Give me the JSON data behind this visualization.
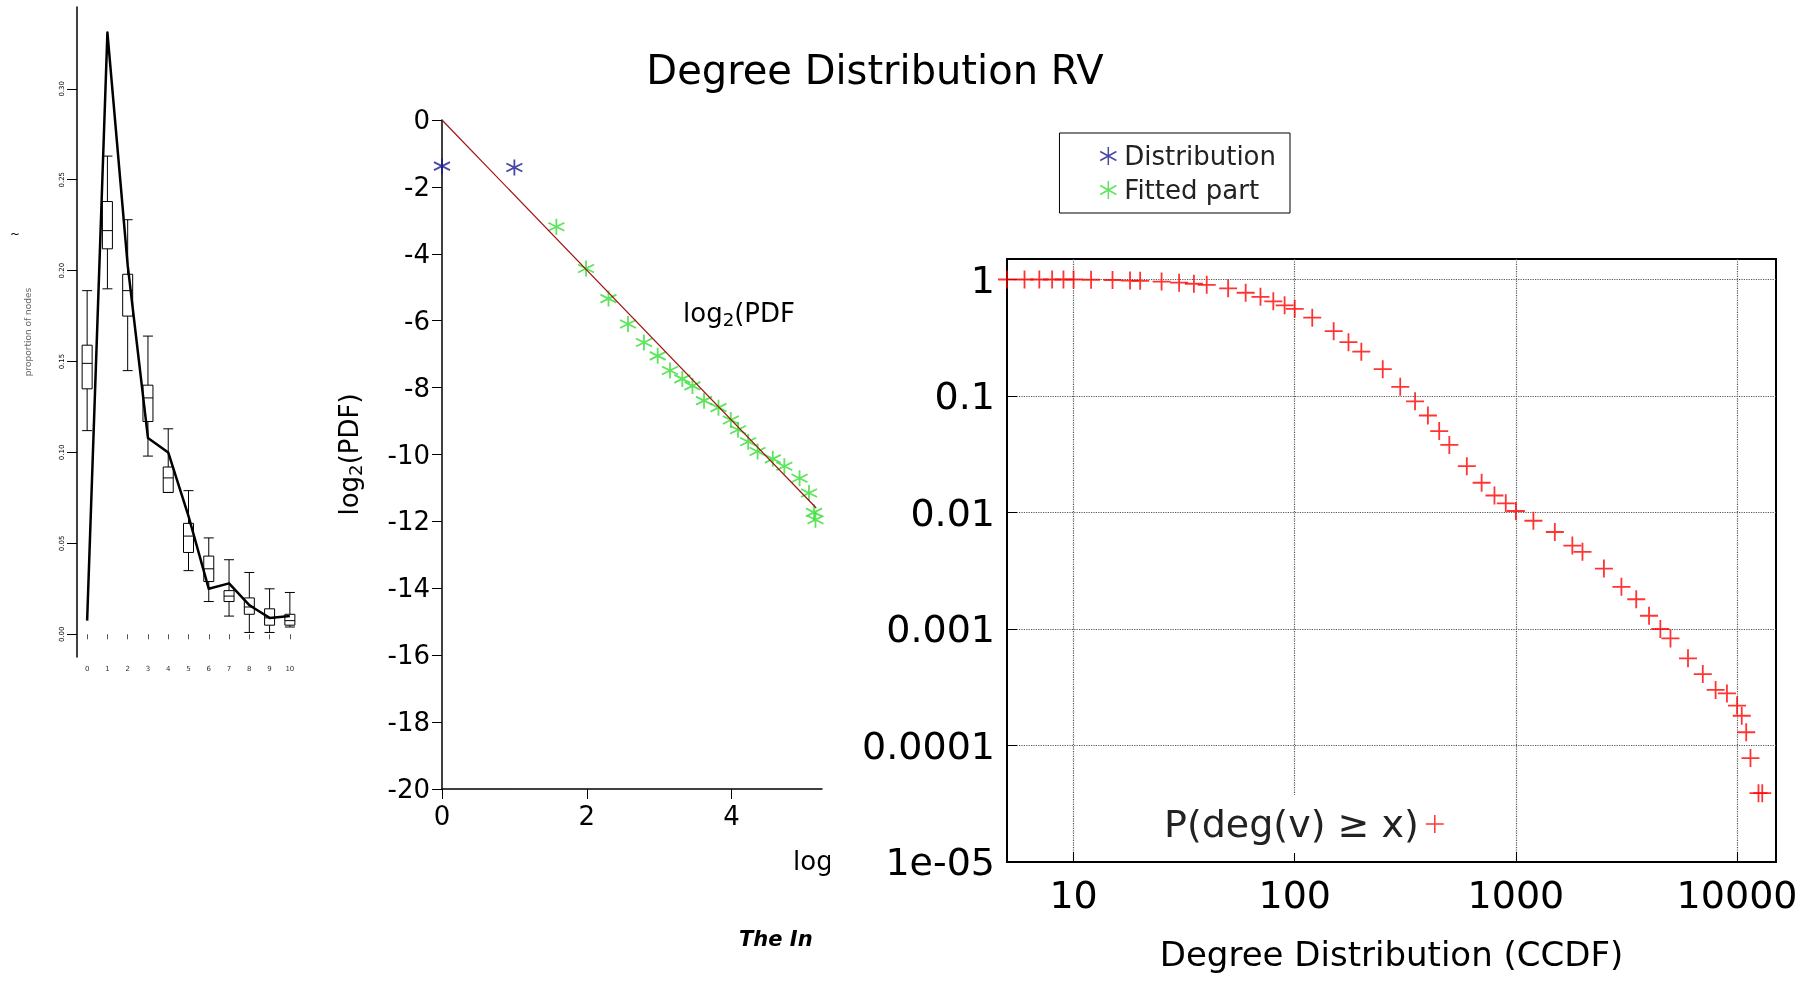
{
  "chart_data": [
    {
      "type": "box",
      "ylabel": "proportion of nodes",
      "categories": [
        "0",
        "1",
        "2",
        "3",
        "4",
        "5",
        "6",
        "7",
        "8",
        "9",
        "10"
      ],
      "ylim": [
        -0.0125,
        0.345
      ],
      "yticks": [
        {
          "value": 0,
          "label": "0.00"
        },
        {
          "value": 0.05,
          "label": "0.05"
        },
        {
          "value": 0.1,
          "label": "0.10"
        },
        {
          "value": 0.15,
          "label": "0.15"
        },
        {
          "value": 0.2,
          "label": "0.20"
        },
        {
          "value": 0.25,
          "label": "0.25"
        },
        {
          "value": 0.3,
          "label": "0.30"
        }
      ],
      "series": [
        {
          "color": "#000000",
          "boxes": [
            {
              "low": 0.112,
              "q1": 0.135,
              "median": 0.149,
              "q3": 0.159,
              "high": 0.189
            },
            {
              "low": 0.19,
              "q1": 0.212,
              "median": 0.222,
              "q3": 0.238,
              "high": 0.263
            },
            {
              "low": 0.145,
              "q1": 0.175,
              "median": 0.189,
              "q3": 0.198,
              "high": 0.228
            },
            {
              "low": 0.098,
              "q1": 0.117,
              "median": 0.13,
              "q3": 0.137,
              "high": 0.164
            },
            {
              "low": 0.078,
              "q1": 0.078,
              "median": 0.086,
              "q3": 0.092,
              "high": 0.113
            },
            {
              "low": 0.035,
              "q1": 0.045,
              "median": 0.054,
              "q3": 0.061,
              "high": 0.079
            },
            {
              "low": 0.018,
              "q1": 0.029,
              "median": 0.036,
              "q3": 0.043,
              "high": 0.053
            },
            {
              "low": 0.01,
              "q1": 0.018,
              "median": 0.021,
              "q3": 0.024,
              "high": 0.041
            },
            {
              "low": 0.001,
              "q1": 0.011,
              "median": 0.015,
              "q3": 0.02,
              "high": 0.034
            },
            {
              "low": 0.001,
              "q1": 0.005,
              "median": 0.009,
              "q3": 0.014,
              "high": 0.025
            },
            {
              "low": 0.004,
              "q1": 0.005,
              "median": 0.0075,
              "q3": 0.011,
              "high": 0.023
            }
          ]
        },
        {
          "type": "line",
          "color": "#000000",
          "values": [
            0.0075,
            0.331,
            0.203,
            0.108,
            0.1,
            0.065,
            0.025,
            0.028,
            0.016,
            0.009,
            0.01
          ]
        }
      ],
      "annotations": [
        "~"
      ]
    },
    {
      "type": "scatter",
      "title": "Degree Distribution RV",
      "xlabel": "log",
      "ylabel": "log$_{2}$(PDF)",
      "xlim": [
        0,
        5.25
      ],
      "xticks": [
        0,
        2,
        4
      ],
      "ylim": [
        -20,
        0
      ],
      "yticks": [
        -20,
        -18,
        -16,
        -14,
        -12,
        -10,
        -8,
        -6,
        -4,
        -2,
        0
      ],
      "legend": "top right",
      "series": [
        {
          "name": "Distribution",
          "color": "#1a1a8c",
          "marker": "cross",
          "x": [
            0,
            1
          ],
          "values": [
            -1.38,
            -1.42
          ]
        },
        {
          "name": "Fitted part",
          "color": "#33dd33",
          "marker": "cross",
          "x": [
            1.58,
            1.99,
            2.3,
            2.57,
            2.79,
            2.98,
            3.15,
            3.32,
            3.46,
            3.62,
            3.82,
            3.99,
            4.09,
            4.23,
            4.36,
            4.57,
            4.73,
            4.94,
            5.07,
            5.14,
            5.16
          ],
          "values": [
            -3.19,
            -4.44,
            -5.34,
            -6.1,
            -6.65,
            -7.05,
            -7.49,
            -7.74,
            -7.95,
            -8.39,
            -8.6,
            -8.97,
            -9.26,
            -9.62,
            -9.91,
            -10.13,
            -10.35,
            -10.71,
            -11.15,
            -11.73,
            -11.95
          ]
        },
        {
          "type": "line",
          "color": "#a01010",
          "marker": "none",
          "x": [
            0,
            5.17
          ],
          "values": [
            0,
            -11.6
          ]
        }
      ],
      "annotations": [
        "log$_{2}$(PDF",
        "The In"
      ]
    },
    {
      "type": "scatter",
      "xlabel": "Degree Distribution (CCDF)",
      "log": "xy",
      "xlim": [
        5,
        15000
      ],
      "xticks": [
        10,
        100,
        1000,
        10000
      ],
      "ylim": [
        1e-05,
        1.5
      ],
      "yticks": [
        {
          "value": 1e-05,
          "label": "1e-05"
        },
        0.0001,
        0.001,
        0.01,
        0.1,
        1
      ],
      "grid": true,
      "marker": "cross",
      "legend": "bottom left",
      "series": [
        {
          "name": "P(deg(v) ≥ x)",
          "color": "#ff0000",
          "x": [
            5,
            6,
            7,
            8,
            9,
            10,
            12,
            15,
            18,
            20,
            25,
            30,
            35,
            40,
            50,
            60,
            70,
            80,
            90,
            100,
            120,
            150,
            175,
            200,
            250,
            300,
            350,
            400,
            450,
            500,
            600,
            700,
            800,
            900,
            1000,
            1200,
            1500,
            1800,
            2000,
            2500,
            3000,
            3500,
            4000,
            4500,
            5000,
            6000,
            7000,
            8000,
            9000,
            10000,
            10500,
            11000,
            11500,
            12500,
            13000
          ],
          "values": [
            1,
            1,
            1,
            1,
            1,
            1,
            0.995,
            0.99,
            0.98,
            0.975,
            0.96,
            0.94,
            0.92,
            0.9,
            0.84,
            0.77,
            0.71,
            0.65,
            0.6,
            0.56,
            0.47,
            0.36,
            0.29,
            0.24,
            0.17,
            0.12,
            0.09,
            0.068,
            0.05,
            0.038,
            0.025,
            0.018,
            0.014,
            0.012,
            0.0103,
            0.0085,
            0.0068,
            0.0052,
            0.0046,
            0.0033,
            0.0023,
            0.0018,
            0.0013,
            0.001,
            0.00083,
            0.00056,
            0.00041,
            0.0003,
            0.00028,
            0.00022,
            0.00018,
            0.00013,
            7.8e-05,
            3.9e-05,
            3.9e-05
          ]
        }
      ]
    }
  ]
}
